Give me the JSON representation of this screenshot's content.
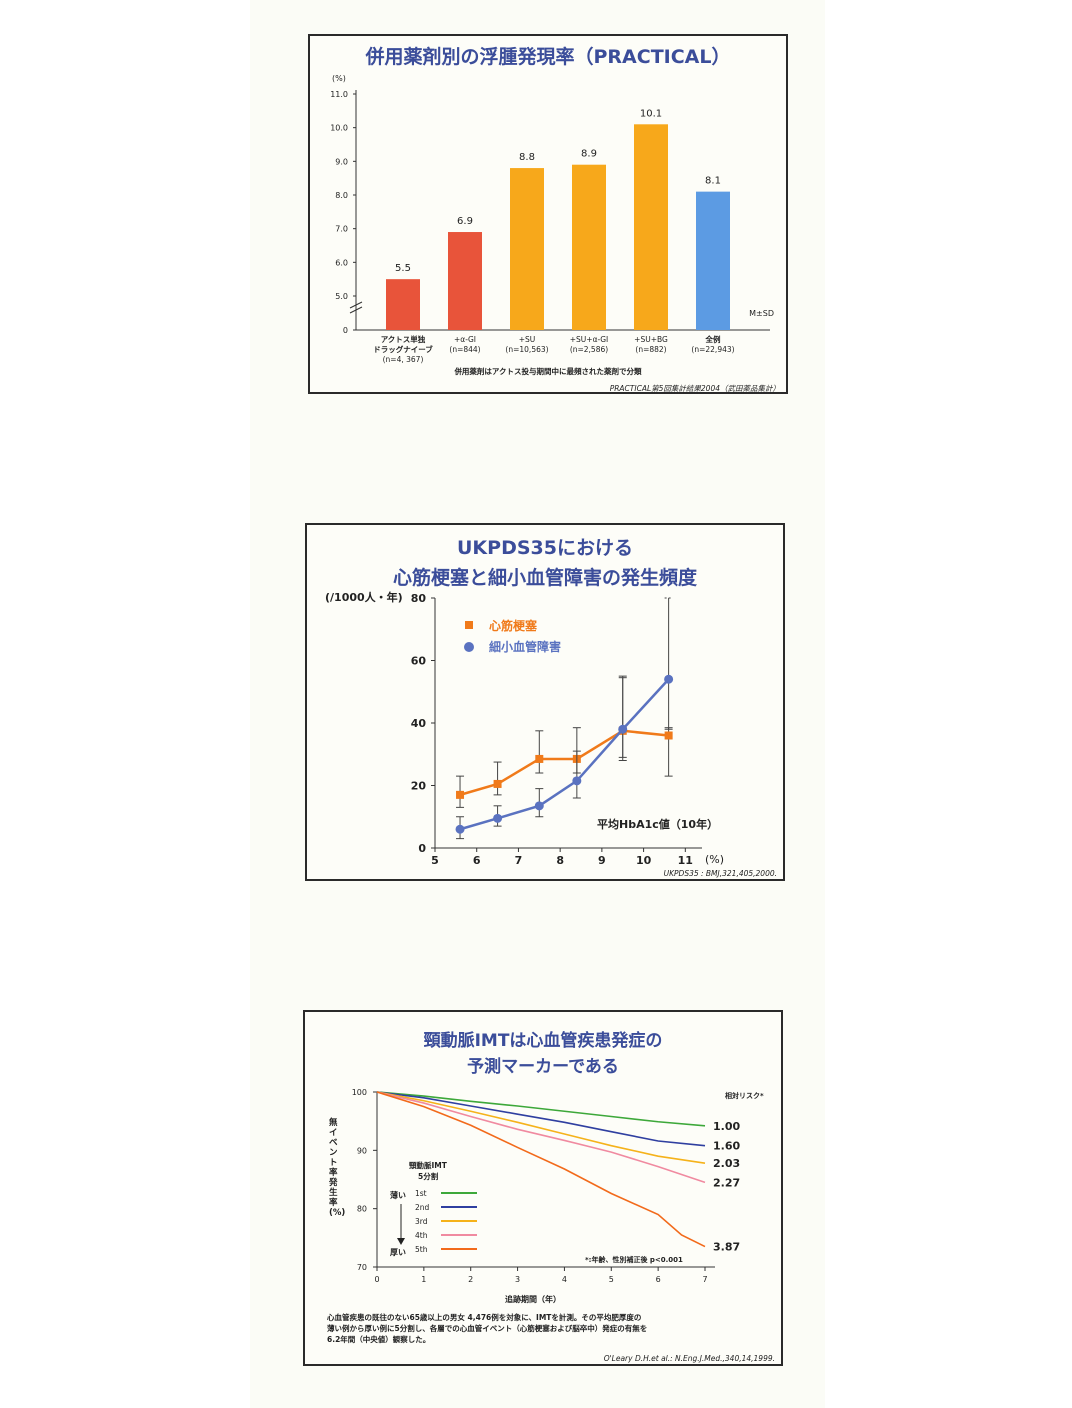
{
  "colors": {
    "red": "#e8543a",
    "orange": "#f7a81b",
    "blue": "#5c9be3",
    "line_orange": "#f07a1a",
    "line_blue": "#5a72c0",
    "title": "#3b4d9a"
  },
  "panel1": {
    "title": "併用薬剤別の浮腫発現率（PRACTICAL）",
    "y_unit": "(%)",
    "msd": "M±SD",
    "footnote": "併用薬剤はアクトス投与期間中に最頻された薬剤で分類",
    "source": "PRACTICAL第5回集計結果2004（武田薬品集計）",
    "category_labels": [
      [
        "アクトス単独",
        "ドラッグナイーブ",
        "(n=4, 367)"
      ],
      [
        "+α-GI",
        "(n=844)"
      ],
      [
        "+SU",
        "(n=10,563)"
      ],
      [
        "+SU+α-GI",
        "(n=2,586)"
      ],
      [
        "+SU+BG",
        "(n=882)"
      ],
      [
        "全例",
        "(n=22,943)"
      ]
    ],
    "value_labels": [
      "5.5",
      "6.9",
      "8.8",
      "8.9",
      "10.1",
      "8.1"
    ],
    "ytick_labels": [
      "0",
      "5.0",
      "6.0",
      "7.0",
      "8.0",
      "9.0",
      "10.0",
      "11.0"
    ]
  },
  "panel2": {
    "title_line1": "UKPDS35における",
    "title_line2": "心筋梗塞と細小血管障害の発生頻度",
    "y_unit": "(/1000人・年)",
    "x_unit": "(%)",
    "xlabel": "平均HbA1c値（10年）",
    "legend": [
      "心筋梗塞",
      "細小血管障害"
    ],
    "source": "UKPDS35 : BMJ,321,405,2000.",
    "xtick_labels": [
      "5",
      "6",
      "7",
      "8",
      "9",
      "10",
      "11"
    ],
    "ytick_labels": [
      "0",
      "20",
      "40",
      "60",
      "80"
    ]
  },
  "panel3": {
    "title_line1": "頸動脈IMTは心血管疾患発症の",
    "title_line2": "予測マーカーである",
    "ylabel": "無イベント率発生率(%)",
    "xlabel": "追跡期間（年）",
    "risk_header": "相対リスク*",
    "risk_values": [
      "1.00",
      "1.60",
      "2.03",
      "2.27",
      "3.87"
    ],
    "legend_title1": "頸動脈IMT",
    "legend_title2": "5分割",
    "thin_label": "薄い",
    "thick_label": "厚い",
    "quintiles": [
      "1st",
      "2nd",
      "3rd",
      "4th",
      "5th"
    ],
    "adjust_note": "*:年齢、性別補正後 p<0.001",
    "ytick_labels": [
      "70",
      "80",
      "90",
      "100"
    ],
    "xtick_labels": [
      "0",
      "1",
      "2",
      "3",
      "4",
      "5",
      "6",
      "7"
    ],
    "desc_lines": [
      "心血管疾患の既往のない65歳以上の男女 4,476例を対象に、IMTを計測。その平均肥厚度の",
      "薄い例から厚い例に5分割し、各層での心血管イベント（心筋梗塞および脳卒中）発症の有無を",
      "6.2年間（中央値）観察した。"
    ],
    "source": "O'Leary D.H.et al.: N.Eng.J.Med.,340,14,1999."
  },
  "chart_data": [
    {
      "type": "bar",
      "title": "併用薬剤別の浮腫発現率（PRACTICAL）",
      "categories": [
        "アクトス単独 ドラッグナイーブ (n=4, 367)",
        "+α-GI (n=844)",
        "+SU (n=10,563)",
        "+SU+α-GI (n=2,586)",
        "+SU+BG (n=882)",
        "全例 (n=22,943)"
      ],
      "values": [
        5.5,
        6.9,
        8.8,
        8.9,
        10.1,
        8.1
      ],
      "bar_colors": [
        "#e8543a",
        "#e8543a",
        "#f7a81b",
        "#f7a81b",
        "#f7a81b",
        "#5c9be3"
      ],
      "ylabel": "(%)",
      "ylim": [
        0,
        11.0
      ],
      "axis_break": true
    },
    {
      "type": "line",
      "title": "UKPDS35における 心筋梗塞と細小血管障害の発生頻度",
      "xlabel": "平均HbA1c値（10年）",
      "ylabel": "(/1000人・年)",
      "xlim": [
        5,
        11
      ],
      "ylim": [
        0,
        80
      ],
      "series": [
        {
          "name": "心筋梗塞",
          "x": [
            5.6,
            6.5,
            7.5,
            8.4,
            9.5,
            10.6
          ],
          "y": [
            17,
            20.5,
            28.5,
            28.5,
            37.5,
            36
          ],
          "err_low": [
            13,
            17,
            24,
            24,
            29,
            23
          ],
          "err_high": [
            23,
            27.5,
            37.5,
            38.5,
            55,
            38.5
          ]
        },
        {
          "name": "細小血管障害",
          "x": [
            5.6,
            6.5,
            7.5,
            8.4,
            9.5,
            10.6
          ],
          "y": [
            6,
            9.5,
            13.5,
            21.5,
            38,
            54
          ],
          "err_low": [
            3,
            7,
            10,
            16,
            28,
            38
          ],
          "err_high": [
            10,
            13.5,
            19,
            31,
            54.5,
            80
          ]
        }
      ]
    },
    {
      "type": "line",
      "title": "頸動脈IMTは心血管疾患発症の 予測マーカーである",
      "xlabel": "追跡期間（年）",
      "ylabel": "無イベント率発生率(%)",
      "xlim": [
        0,
        7
      ],
      "ylim": [
        70,
        100
      ],
      "series": [
        {
          "name": "1st",
          "relative_risk": "1.00",
          "x": [
            0,
            1,
            2,
            3,
            4,
            5,
            6,
            7
          ],
          "y": [
            100,
            99.3,
            98.4,
            97.6,
            96.7,
            95.8,
            94.9,
            94.2
          ]
        },
        {
          "name": "2nd",
          "relative_risk": "1.60",
          "x": [
            0,
            1,
            2,
            3,
            4,
            5,
            6,
            7
          ],
          "y": [
            100,
            99,
            97.6,
            96.2,
            94.8,
            93.2,
            91.6,
            90.8
          ]
        },
        {
          "name": "3rd",
          "relative_risk": "2.03",
          "x": [
            0,
            1,
            2,
            3,
            4,
            5,
            6,
            7
          ],
          "y": [
            100,
            98.5,
            96.7,
            94.8,
            92.8,
            90.8,
            89,
            87.8
          ]
        },
        {
          "name": "4th",
          "relative_risk": "2.27",
          "x": [
            0,
            1,
            2,
            3,
            4,
            5,
            6,
            7
          ],
          "y": [
            100,
            98.1,
            95.8,
            93.6,
            91.7,
            89.7,
            87.2,
            84.5
          ]
        },
        {
          "name": "5th",
          "relative_risk": "3.87",
          "x": [
            0,
            1,
            2,
            3,
            4,
            5,
            6,
            6.5,
            7
          ],
          "y": [
            100,
            97.5,
            94.3,
            90.5,
            86.8,
            82.6,
            79,
            75.5,
            73.5
          ]
        }
      ]
    }
  ]
}
